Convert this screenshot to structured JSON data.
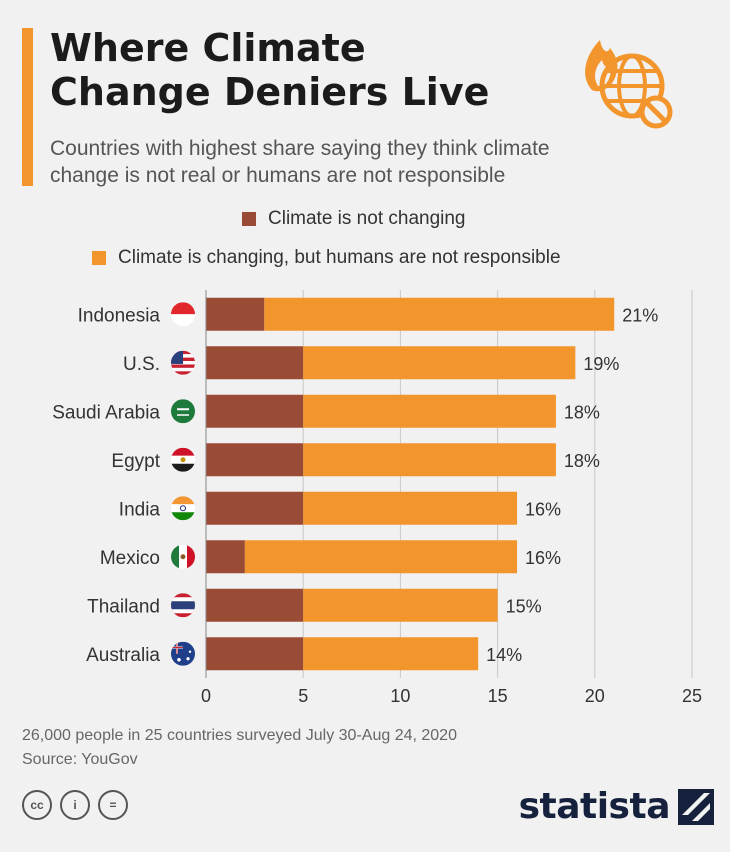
{
  "header": {
    "title_line1": "Where Climate",
    "title_line2": "Change Deniers Live",
    "subtitle_line1": "Countries with highest share saying they think climate",
    "subtitle_line2": "change is not real or humans are not responsible"
  },
  "colors": {
    "not_changing": "#9a4b36",
    "not_responsible": "#f2952d",
    "accent": "#f2952d",
    "brand": "#16213e"
  },
  "chart_data": {
    "type": "bar",
    "orientation": "horizontal",
    "stacked": true,
    "categories": [
      "Indonesia",
      "U.S.",
      "Saudi Arabia",
      "Egypt",
      "India",
      "Mexico",
      "Thailand",
      "Australia"
    ],
    "series": [
      {
        "name": "Climate is not changing",
        "values": [
          3,
          5,
          5,
          5,
          5,
          2,
          5,
          5
        ]
      },
      {
        "name": "Climate is changing, but humans are not responsible",
        "values": [
          18,
          14,
          13,
          13,
          11,
          14,
          10,
          9
        ]
      }
    ],
    "data_labels": [
      "21%",
      "19%",
      "18%",
      "18%",
      "16%",
      "16%",
      "15%",
      "14%"
    ],
    "xlim": [
      0,
      25
    ],
    "xticks": [
      0,
      5,
      10,
      15,
      20,
      25
    ],
    "xlabel": "",
    "ylabel": "",
    "grid": true,
    "legend_position": "top"
  },
  "icons": [
    "flag-indonesia-icon",
    "flag-us-icon",
    "flag-saudi-arabia-icon",
    "flag-egypt-icon",
    "flag-india-icon",
    "flag-mexico-icon",
    "flag-thailand-icon",
    "flag-australia-icon"
  ],
  "footer": {
    "note": "26,000 people in 25 countries surveyed July 30-Aug 24, 2020",
    "source": "Source: YouGov"
  },
  "license": {
    "cc": "cc",
    "by": "i",
    "nd": "="
  },
  "brand": {
    "name": "statista"
  }
}
